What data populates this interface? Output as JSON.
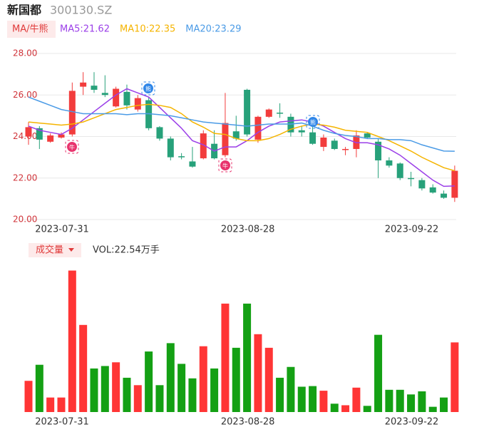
{
  "header": {
    "name": "新国都",
    "code": "300130.SZ"
  },
  "chart_data": [
    {
      "type": "candlestick",
      "legend_title": "MA/牛熊",
      "categories": [
        null,
        null,
        null,
        "2023-07-31",
        null,
        null,
        null,
        null,
        null,
        null,
        null,
        null,
        null,
        null,
        null,
        null,
        null,
        null,
        null,
        null,
        "2023-08-28",
        null,
        null,
        null,
        null,
        null,
        null,
        null,
        null,
        null,
        null,
        null,
        null,
        null,
        null,
        "2023-09-22",
        null,
        null,
        null,
        null
      ],
      "open": [
        24.0,
        24.4,
        23.75,
        23.95,
        24.1,
        26.4,
        26.45,
        26.1,
        25.45,
        26.15,
        25.3,
        25.75,
        24.45,
        23.9,
        23.05,
        22.8,
        22.95,
        23.65,
        23.1,
        24.25,
        26.25,
        23.85,
        24.95,
        25.15,
        24.95,
        24.3,
        24.2,
        23.5,
        23.8,
        23.35,
        23.4,
        24.15,
        23.75,
        22.85,
        22.7,
        22.0,
        21.9,
        21.55,
        21.25,
        21.05
      ],
      "high": [
        24.7,
        24.5,
        24.15,
        24.2,
        26.6,
        27.1,
        27.1,
        26.95,
        26.4,
        26.5,
        26.0,
        25.9,
        24.5,
        24.0,
        23.2,
        23.5,
        24.3,
        24.3,
        26.1,
        25.0,
        26.3,
        25.0,
        25.35,
        25.6,
        25.1,
        24.5,
        24.5,
        24.1,
        23.9,
        23.5,
        24.3,
        24.2,
        23.9,
        23.0,
        22.75,
        22.3,
        22.0,
        21.7,
        21.4,
        22.6
      ],
      "low": [
        23.6,
        23.4,
        23.7,
        23.9,
        24.0,
        26.0,
        26.1,
        25.9,
        25.4,
        25.3,
        25.2,
        24.3,
        23.8,
        22.85,
        22.9,
        22.5,
        22.9,
        22.9,
        23.0,
        23.8,
        24.0,
        23.7,
        24.9,
        24.9,
        24.0,
        24.0,
        23.6,
        23.3,
        23.35,
        23.1,
        23.0,
        23.9,
        22.0,
        22.5,
        21.9,
        21.6,
        21.4,
        21.25,
        21.0,
        20.85
      ],
      "close": [
        24.45,
        23.85,
        24.05,
        24.1,
        26.2,
        26.6,
        26.25,
        26.0,
        26.3,
        25.5,
        25.85,
        24.4,
        23.9,
        23.0,
        23.0,
        22.55,
        24.15,
        22.95,
        24.65,
        23.9,
        24.1,
        24.95,
        25.3,
        25.1,
        24.2,
        24.2,
        23.65,
        23.95,
        23.4,
        23.4,
        24.05,
        23.95,
        22.85,
        22.6,
        22.0,
        21.95,
        21.5,
        21.3,
        21.05,
        22.35
      ],
      "up_color": "#f23c3c",
      "down_color": "#27a17a",
      "series": [
        {
          "name": "MA5:21.62",
          "color": "#9b3fe8",
          "values": [
            24.5,
            24.3,
            24.2,
            24.1,
            24.4,
            24.8,
            25.2,
            25.6,
            26.0,
            26.3,
            26.1,
            25.9,
            25.4,
            24.9,
            24.4,
            23.8,
            23.6,
            23.3,
            23.5,
            23.5,
            23.8,
            24.2,
            24.5,
            24.7,
            24.75,
            24.8,
            24.7,
            24.5,
            24.2,
            23.9,
            23.7,
            23.7,
            23.6,
            23.4,
            23.1,
            22.7,
            22.3,
            21.9,
            21.6,
            21.62
          ]
        },
        {
          "name": "MA10:22.35",
          "color": "#f5b400",
          "values": [
            24.7,
            24.65,
            24.6,
            24.55,
            24.6,
            24.7,
            24.9,
            25.1,
            25.3,
            25.4,
            25.5,
            25.55,
            25.5,
            25.4,
            25.1,
            24.7,
            24.45,
            24.15,
            24.1,
            23.9,
            23.8,
            23.8,
            23.9,
            24.1,
            24.35,
            24.5,
            24.6,
            24.55,
            24.45,
            24.3,
            24.25,
            24.2,
            24.0,
            23.8,
            23.55,
            23.3,
            23.0,
            22.75,
            22.5,
            22.35
          ]
        },
        {
          "name": "MA20:23.29",
          "color": "#4b9be6",
          "values": [
            25.9,
            25.7,
            25.5,
            25.3,
            25.2,
            25.1,
            25.1,
            25.1,
            25.1,
            25.05,
            25.1,
            25.1,
            25.05,
            25.0,
            24.9,
            24.8,
            24.7,
            24.65,
            24.6,
            24.55,
            24.5,
            24.55,
            24.6,
            24.6,
            24.6,
            24.65,
            24.5,
            24.3,
            24.15,
            24.05,
            24.0,
            23.9,
            23.9,
            23.85,
            23.85,
            23.8,
            23.6,
            23.45,
            23.3,
            23.29
          ]
        }
      ],
      "ylim": [
        20,
        28
      ],
      "yticks": [
        {
          "value": 20,
          "label": "20.00"
        },
        {
          "value": 22,
          "label": "22.00"
        },
        {
          "value": 24,
          "label": "24.00"
        },
        {
          "value": 26,
          "label": "26.00"
        },
        {
          "value": 28,
          "label": "28.00"
        }
      ],
      "grid": true,
      "signals": [
        "牛",
        "熊",
        "牛",
        "熊"
      ]
    },
    {
      "type": "bar",
      "title": "成交量",
      "subtitle": "VOL:22.54万手",
      "values": [
        10.1,
        15.3,
        4.7,
        4.7,
        45.8,
        28.2,
        14.1,
        14.9,
        16.1,
        11.1,
        8.7,
        19.6,
        8.7,
        22.3,
        15.6,
        10.9,
        21.3,
        14.1,
        35.1,
        20.8,
        35.1,
        25.2,
        20.8,
        11.1,
        14.6,
        8.2,
        8.4,
        6.9,
        2.7,
        2.2,
        7.9,
        2.0,
        25.0,
        7.2,
        7.2,
        5.7,
        6.7,
        1.7,
        4.7,
        22.54
      ],
      "up_color": "#ff3535",
      "down_color": "#14a014",
      "ylim": [
        0,
        48
      ]
    }
  ]
}
